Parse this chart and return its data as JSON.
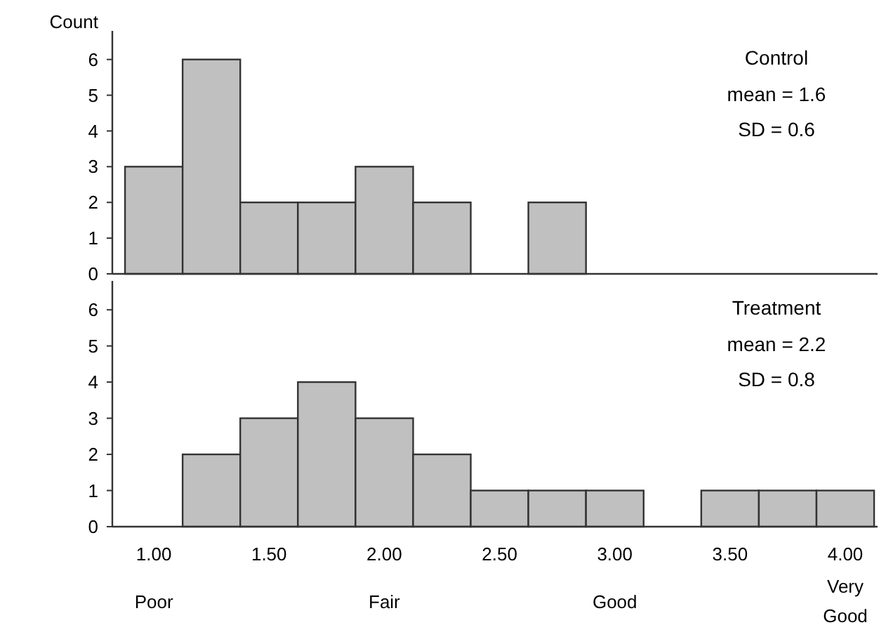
{
  "chart_data": [
    {
      "type": "histogram",
      "title": "Control",
      "ylabel": "Count",
      "annotations": [
        "mean = 1.6",
        "SD = 0.6"
      ],
      "bins": [
        0.875,
        1.125,
        1.375,
        1.625,
        1.875,
        2.125,
        2.375,
        2.625,
        2.875,
        3.125,
        3.375,
        3.625,
        3.875,
        4.125
      ],
      "values": [
        3,
        6,
        2,
        2,
        3,
        2,
        0,
        2,
        0,
        0,
        0,
        0,
        0
      ],
      "color": "#c0c0c0",
      "xlim": [
        0.82,
        4.14
      ],
      "ylim": [
        0,
        6.8
      ],
      "yticks": [
        0,
        1,
        2,
        3,
        4,
        5,
        6
      ],
      "tick_labels": "y",
      "grid": false
    },
    {
      "type": "histogram",
      "title": "Treatment",
      "annotations": [
        "mean = 2.2",
        "SD = 0.8",
        "Poor",
        "Fair",
        "Good",
        "Very Good"
      ],
      "bins": [
        0.875,
        1.125,
        1.375,
        1.625,
        1.875,
        2.125,
        2.375,
        2.625,
        2.875,
        3.125,
        3.375,
        3.625,
        3.875,
        4.125
      ],
      "values": [
        0,
        2,
        3,
        4,
        3,
        2,
        1,
        1,
        1,
        0,
        1,
        1,
        1
      ],
      "color": "#c0c0c0",
      "xlim": [
        0.82,
        4.14
      ],
      "ylim": [
        0,
        6.8
      ],
      "yticks": [
        0,
        1,
        2,
        3,
        4,
        5,
        6
      ],
      "xticks": [
        {
          "value": 1,
          "label": "1.00"
        },
        {
          "value": 1.5,
          "label": "1.50"
        },
        {
          "value": 2,
          "label": "2.00"
        },
        {
          "value": 2.5,
          "label": "2.50"
        },
        {
          "value": 3,
          "label": "3.00"
        },
        {
          "value": 3.5,
          "label": "3.50"
        },
        {
          "value": 4,
          "label": "4.00"
        }
      ],
      "grid": false
    }
  ]
}
